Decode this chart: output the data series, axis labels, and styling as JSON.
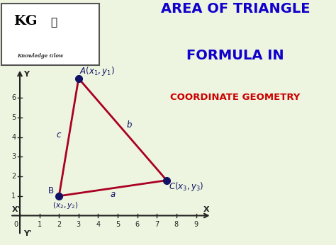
{
  "bg_color": "#edf5e0",
  "title_line1": "AREA OF TRIANGLE",
  "title_line2": "FORMULA IN",
  "title_line3": "COORDINATE GEOMETRY",
  "title_color": "#1100cc",
  "subtitle_color": "#cc0000",
  "triangle": {
    "A": [
      3,
      7
    ],
    "B": [
      2,
      1
    ],
    "C": [
      7.5,
      1.8
    ]
  },
  "triangle_color": "#aa0022",
  "triangle_linewidth": 2.0,
  "point_color": "#111166",
  "point_size": 7,
  "axis_color": "#222222",
  "tick_color": "#222222",
  "xmin": -0.5,
  "xmax": 9.8,
  "ymin": -1.0,
  "ymax": 7.5,
  "x_ticks": [
    0,
    1,
    2,
    3,
    4,
    5,
    6,
    7,
    8,
    9
  ],
  "y_ticks": [
    1,
    2,
    3,
    4,
    5,
    6
  ]
}
